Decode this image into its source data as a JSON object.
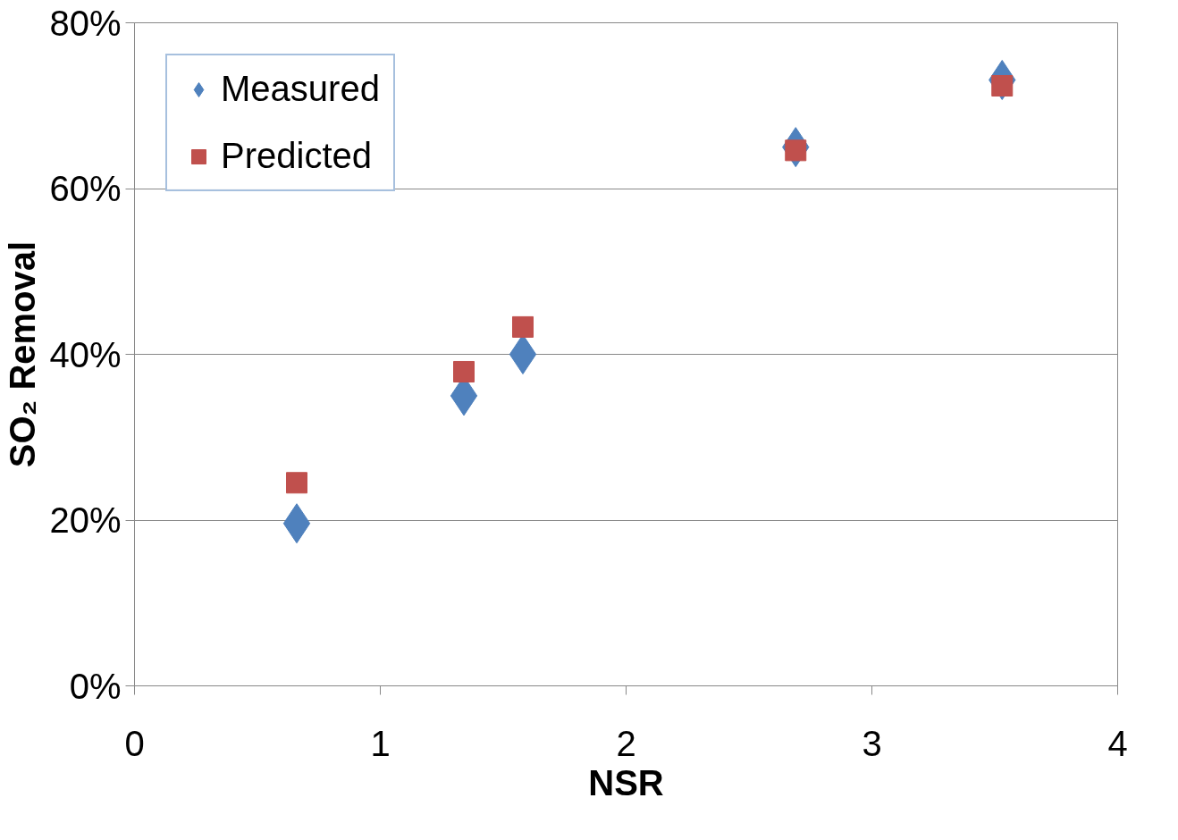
{
  "chart_data": {
    "type": "scatter",
    "xlabel": "NSR",
    "ylabel": "SO₂ Removal",
    "x": [
      0.66,
      1.34,
      1.58,
      2.69,
      3.53
    ],
    "series": [
      {
        "name": "Measured",
        "color": "#4f81bd",
        "marker": "diamond",
        "values": [
          19.6,
          35.0,
          40.0,
          65.0,
          73.1
        ]
      },
      {
        "name": "Predicted",
        "color": "#c0504d",
        "marker": "square",
        "values": [
          24.5,
          37.9,
          43.3,
          64.6,
          72.4
        ]
      }
    ],
    "xlim": [
      0,
      4
    ],
    "xticks": [
      0,
      1,
      2,
      3,
      4
    ],
    "ylim": [
      0,
      80
    ],
    "yticks": [
      {
        "value": 0,
        "label": "0%"
      },
      {
        "value": 20,
        "label": "20%"
      },
      {
        "value": 40,
        "label": "40%"
      },
      {
        "value": 60,
        "label": "60%"
      },
      {
        "value": 80,
        "label": "80%"
      }
    ],
    "grid": "y",
    "legend": "top left"
  }
}
